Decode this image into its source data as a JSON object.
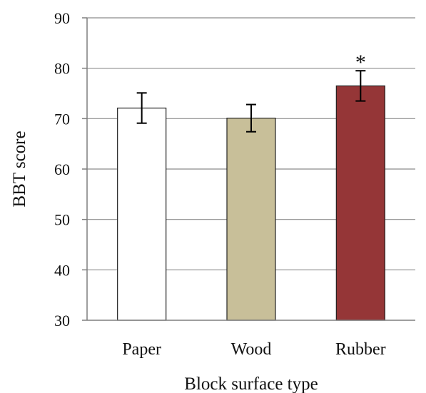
{
  "chart_data": {
    "type": "bar",
    "categories": [
      "Paper",
      "Wood",
      "Rubber"
    ],
    "values": [
      72.1,
      70.1,
      76.5
    ],
    "errors": [
      3.0,
      2.7,
      3.0
    ],
    "bar_colors": [
      "#ffffff",
      "#c8bf99",
      "#953637"
    ],
    "annotations": [
      "",
      "",
      "*"
    ],
    "xlabel": "Block surface type",
    "ylabel": "BBT score",
    "ylim": [
      30,
      90
    ],
    "yticks": [
      "30",
      "40",
      "50",
      "60",
      "70",
      "80",
      "90"
    ],
    "grid": true
  }
}
